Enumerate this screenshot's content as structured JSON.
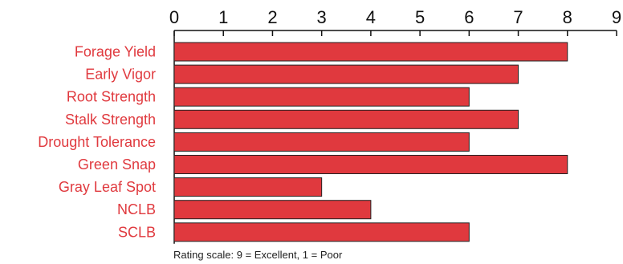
{
  "chart_data": {
    "type": "bar",
    "orientation": "horizontal",
    "categories": [
      "Forage Yield",
      "Early Vigor",
      "Root Strength",
      "Stalk Strength",
      "Drought Tolerance",
      "Green Snap",
      "Gray Leaf Spot",
      "NCLB",
      "SCLB"
    ],
    "values": [
      8,
      7,
      6,
      7,
      6,
      8,
      3,
      4,
      6
    ],
    "xlim": [
      0,
      9
    ],
    "xticks": [
      0,
      1,
      2,
      3,
      4,
      5,
      6,
      7,
      8,
      9
    ],
    "axis_position": "top",
    "grid": false,
    "footnote": "Rating scale: 9 = Excellent, 1 = Poor"
  },
  "colors": {
    "bar": "#e0393e",
    "category_label": "#e0393e",
    "axis": "#111111"
  }
}
